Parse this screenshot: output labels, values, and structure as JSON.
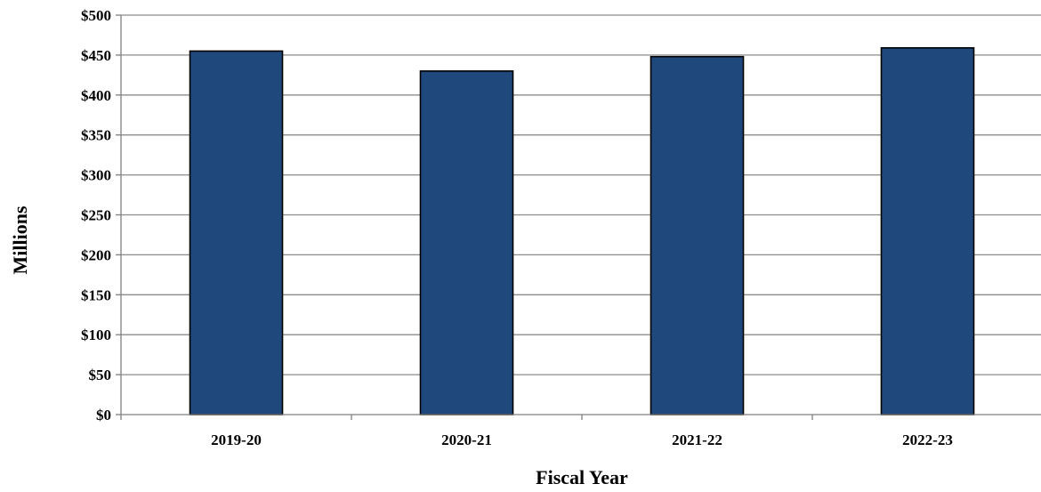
{
  "chart_data": {
    "type": "bar",
    "categories": [
      "2019-20",
      "2020-21",
      "2021-22",
      "2022-23"
    ],
    "values": [
      455,
      430,
      448,
      459
    ],
    "xlabel": "Fiscal Year",
    "ylabel": "Millions",
    "ylim": [
      0,
      500
    ],
    "yticks": [
      "$0",
      "$50",
      "$100",
      "$150",
      "$200",
      "$250",
      "$300",
      "$350",
      "$400",
      "$450",
      "$500"
    ],
    "grid": true,
    "legend": "none",
    "bar_color": "#1f497d"
  }
}
